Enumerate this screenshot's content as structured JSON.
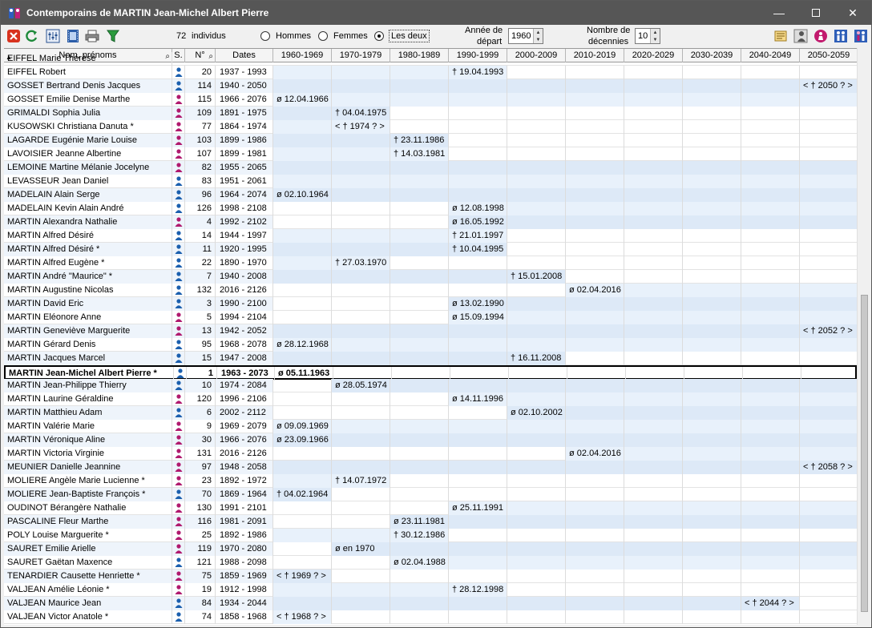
{
  "window": {
    "title": "Contemporains de MARTIN Jean-Michel Albert Pierre"
  },
  "toolbar": {
    "count_value": "72",
    "count_label": "individus",
    "radio_men": "Hommes",
    "radio_women": "Femmes",
    "radio_both": "Les deux",
    "year_label_1": "Année de",
    "year_label_2": "départ",
    "year_value": "1960",
    "decades_label_1": "Nombre de",
    "decades_label_2": "décennies",
    "decades_value": "10",
    "selected_radio": "Les deux"
  },
  "table": {
    "headers": {
      "name": "Nom, prénoms",
      "sex": "S.",
      "num": "N°",
      "dates": "Dates"
    },
    "decades": [
      "1960-1969",
      "1970-1979",
      "1980-1989",
      "1990-1999",
      "2000-2009",
      "2010-2019",
      "2020-2029",
      "2030-2039",
      "2040-2049",
      "2050-2059"
    ],
    "partial_top_name": "EIFFEL Marie Thérèse",
    "rows": [
      {
        "name": "EIFFEL Robert",
        "sex": "M",
        "num": "20",
        "dates": "1937 - 1993",
        "event": "† 19.04.1993",
        "col": 3,
        "span_from": 0,
        "span_to": 3
      },
      {
        "name": "GOSSET Bertrand Denis Jacques",
        "sex": "M",
        "num": "114",
        "dates": "1940 - 2050",
        "event": "< † 2050 ? >",
        "col": 9,
        "span_from": 0,
        "span_to": 9
      },
      {
        "name": "GOSSET Emilie Denise Marthe",
        "sex": "F",
        "num": "115",
        "dates": "1966 - 2076",
        "event": "ø 12.04.1966",
        "col": 0,
        "span_from": 0,
        "span_to": 9
      },
      {
        "name": "GRIMALDI Sophia Julia",
        "sex": "F",
        "num": "109",
        "dates": "1891 - 1975",
        "event": "† 04.04.1975",
        "col": 1,
        "span_from": 0,
        "span_to": 1
      },
      {
        "name": "KUSOWSKI Christiana Danuta *",
        "sex": "F",
        "num": "77",
        "dates": "1864 - 1974",
        "event": "< † 1974 ? >",
        "col": 1,
        "span_from": 0,
        "span_to": 1
      },
      {
        "name": "LAGARDE Eugénie Marie Louise",
        "sex": "F",
        "num": "103",
        "dates": "1899 - 1986",
        "event": "† 23.11.1986",
        "col": 2,
        "span_from": 0,
        "span_to": 2
      },
      {
        "name": "LAVOISIER Jeanne Albertine",
        "sex": "F",
        "num": "107",
        "dates": "1899 - 1981",
        "event": "† 14.03.1981",
        "col": 2,
        "span_from": 0,
        "span_to": 2
      },
      {
        "name": "LEMOINE Martine Mélanie Jocelyne",
        "sex": "F",
        "num": "82",
        "dates": "1955 - 2065",
        "event": "",
        "col": -1,
        "span_from": 0,
        "span_to": 9
      },
      {
        "name": "LEVASSEUR Jean Daniel",
        "sex": "M",
        "num": "83",
        "dates": "1951 - 2061",
        "event": "",
        "col": -1,
        "span_from": 0,
        "span_to": 9
      },
      {
        "name": "MADELAIN Alain Serge",
        "sex": "M",
        "num": "96",
        "dates": "1964 - 2074",
        "event": "ø 02.10.1964",
        "col": 0,
        "span_from": 0,
        "span_to": 9
      },
      {
        "name": "MADELAIN Kevin Alain André",
        "sex": "M",
        "num": "126",
        "dates": "1998 - 2108",
        "event": "ø 12.08.1998",
        "col": 3,
        "span_from": 3,
        "span_to": 9
      },
      {
        "name": "MARTIN Alexandra Nathalie",
        "sex": "F",
        "num": "4",
        "dates": "1992 - 2102",
        "event": "ø 16.05.1992",
        "col": 3,
        "span_from": 3,
        "span_to": 9
      },
      {
        "name": "MARTIN Alfred Désiré",
        "sex": "M",
        "num": "14",
        "dates": "1944 - 1997",
        "event": "† 21.01.1997",
        "col": 3,
        "span_from": 0,
        "span_to": 3
      },
      {
        "name": "MARTIN Alfred Désiré *",
        "sex": "M",
        "num": "11",
        "dates": "1920 - 1995",
        "event": "† 10.04.1995",
        "col": 3,
        "span_from": 0,
        "span_to": 3
      },
      {
        "name": "MARTIN Alfred Eugène *",
        "sex": "M",
        "num": "22",
        "dates": "1890 - 1970",
        "event": "† 27.03.1970",
        "col": 1,
        "span_from": 0,
        "span_to": 1
      },
      {
        "name": "MARTIN André \"Maurice\" *",
        "sex": "M",
        "num": "7",
        "dates": "1940 - 2008",
        "event": "† 15.01.2008",
        "col": 4,
        "span_from": 0,
        "span_to": 4
      },
      {
        "name": "MARTIN Augustine Nicolas",
        "sex": "M",
        "num": "132",
        "dates": "2016 - 2126",
        "event": "ø 02.04.2016",
        "col": 5,
        "span_from": 5,
        "span_to": 9
      },
      {
        "name": "MARTIN David Eric",
        "sex": "M",
        "num": "3",
        "dates": "1990 - 2100",
        "event": "ø 13.02.1990",
        "col": 3,
        "span_from": 3,
        "span_to": 9
      },
      {
        "name": "MARTIN Eléonore Anne",
        "sex": "F",
        "num": "5",
        "dates": "1994 - 2104",
        "event": "ø 15.09.1994",
        "col": 3,
        "span_from": 3,
        "span_to": 9
      },
      {
        "name": "MARTIN Geneviève Marguerite",
        "sex": "F",
        "num": "13",
        "dates": "1942 - 2052",
        "event": "< † 2052 ? >",
        "col": 9,
        "span_from": 0,
        "span_to": 9
      },
      {
        "name": "MARTIN Gérard Denis",
        "sex": "M",
        "num": "95",
        "dates": "1968 - 2078",
        "event": "ø 28.12.1968",
        "col": 0,
        "span_from": 0,
        "span_to": 9
      },
      {
        "name": "MARTIN Jacques Marcel",
        "sex": "M",
        "num": "15",
        "dates": "1947 - 2008",
        "event": "† 16.11.2008",
        "col": 4,
        "span_from": 0,
        "span_to": 4
      },
      {
        "name": "MARTIN Jean-Michel Albert Pierre *",
        "sex": "M",
        "num": "1",
        "dates": "1963 - 2073",
        "event": "ø 05.11.1963",
        "col": 0,
        "span_from": -1,
        "span_to": -1,
        "selected": true
      },
      {
        "name": "MARTIN Jean-Philippe Thierry",
        "sex": "M",
        "num": "10",
        "dates": "1974 - 2084",
        "event": "ø 28.05.1974",
        "col": 1,
        "span_from": 1,
        "span_to": 9
      },
      {
        "name": "MARTIN Laurine Géraldine",
        "sex": "F",
        "num": "120",
        "dates": "1996 - 2106",
        "event": "ø 14.11.1996",
        "col": 3,
        "span_from": 3,
        "span_to": 9
      },
      {
        "name": "MARTIN Matthieu Adam",
        "sex": "M",
        "num": "6",
        "dates": "2002 - 2112",
        "event": "ø 02.10.2002",
        "col": 4,
        "span_from": 4,
        "span_to": 9
      },
      {
        "name": "MARTIN Valérie Marie",
        "sex": "F",
        "num": "9",
        "dates": "1969 - 2079",
        "event": "ø 09.09.1969",
        "col": 0,
        "span_from": 0,
        "span_to": 9
      },
      {
        "name": "MARTIN Véronique Aline",
        "sex": "F",
        "num": "30",
        "dates": "1966 - 2076",
        "event": "ø 23.09.1966",
        "col": 0,
        "span_from": 0,
        "span_to": 9
      },
      {
        "name": "MARTIN Victoria Virginie",
        "sex": "F",
        "num": "131",
        "dates": "2016 - 2126",
        "event": "ø 02.04.2016",
        "col": 5,
        "span_from": 5,
        "span_to": 9
      },
      {
        "name": "MEUNIER Danielle Jeannine",
        "sex": "F",
        "num": "97",
        "dates": "1948 - 2058",
        "event": "< † 2058 ? >",
        "col": 9,
        "span_from": 0,
        "span_to": 9
      },
      {
        "name": "MOLIERE Angèle Marie Lucienne *",
        "sex": "F",
        "num": "23",
        "dates": "1892 - 1972",
        "event": "† 14.07.1972",
        "col": 1,
        "span_from": 0,
        "span_to": 1
      },
      {
        "name": "MOLIERE Jean-Baptiste François *",
        "sex": "M",
        "num": "70",
        "dates": "1869 - 1964",
        "event": "† 04.02.1964",
        "col": 0,
        "span_from": 0,
        "span_to": 0
      },
      {
        "name": "OUDINOT Bérangère Nathalie",
        "sex": "F",
        "num": "130",
        "dates": "1991 - 2101",
        "event": "ø 25.11.1991",
        "col": 3,
        "span_from": 3,
        "span_to": 9
      },
      {
        "name": "PASCALINE Fleur Marthe",
        "sex": "F",
        "num": "116",
        "dates": "1981 - 2091",
        "event": "ø 23.11.1981",
        "col": 2,
        "span_from": 2,
        "span_to": 9
      },
      {
        "name": "POLY Louise Marguerite *",
        "sex": "F",
        "num": "25",
        "dates": "1892 - 1986",
        "event": "† 30.12.1986",
        "col": 2,
        "span_from": 0,
        "span_to": 2
      },
      {
        "name": "SAURET Emilie Arielle",
        "sex": "F",
        "num": "119",
        "dates": "1970 - 2080",
        "event": "ø en 1970",
        "col": 1,
        "span_from": 1,
        "span_to": 9
      },
      {
        "name": "SAURET Gaëtan Maxence",
        "sex": "M",
        "num": "121",
        "dates": "1988 - 2098",
        "event": "ø 02.04.1988",
        "col": 2,
        "span_from": 2,
        "span_to": 9
      },
      {
        "name": "TENARDIER Causette Henriette *",
        "sex": "F",
        "num": "75",
        "dates": "1859 - 1969",
        "event": "< † 1969 ? >",
        "col": 0,
        "span_from": 0,
        "span_to": 0
      },
      {
        "name": "VALJEAN Amélie Léonie *",
        "sex": "F",
        "num": "19",
        "dates": "1912 - 1998",
        "event": "† 28.12.1998",
        "col": 3,
        "span_from": 0,
        "span_to": 3
      },
      {
        "name": "VALJEAN Maurice Jean",
        "sex": "M",
        "num": "84",
        "dates": "1934 - 2044",
        "event": "< † 2044 ? >",
        "col": 8,
        "span_from": 0,
        "span_to": 8
      },
      {
        "name": "VALJEAN Victor Anatole *",
        "sex": "M",
        "num": "74",
        "dates": "1858 - 1968",
        "event": "< † 1968 ? >",
        "col": 0,
        "span_from": 0,
        "span_to": 0
      }
    ]
  },
  "colors": {
    "male": "#1b5fae",
    "female": "#b0196e",
    "shaded": "#e8f1fb",
    "titlebar": "#565656"
  }
}
